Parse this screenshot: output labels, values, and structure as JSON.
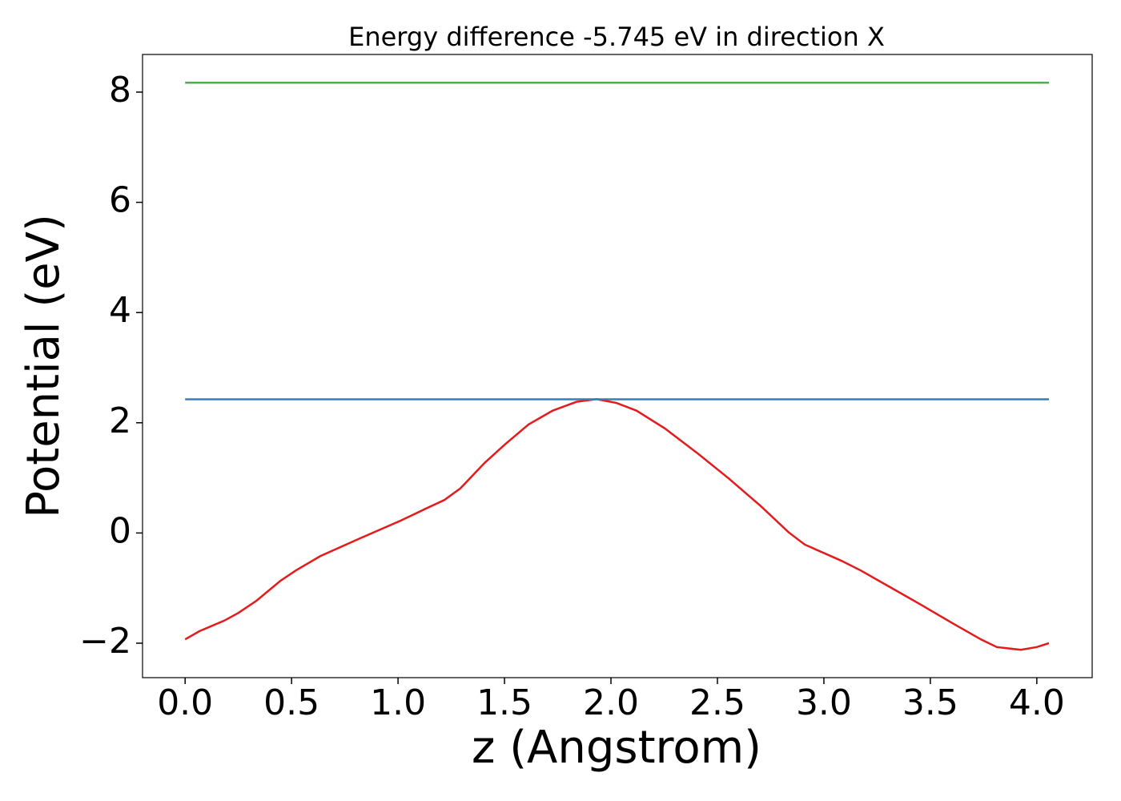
{
  "chart_data": {
    "type": "line",
    "title": "Energy difference -5.745 eV in direction X",
    "xlabel": "z (Angstrom)",
    "ylabel": "Potential (eV)",
    "xlim": [
      -0.2,
      4.26
    ],
    "ylim": [
      -2.625,
      8.683
    ],
    "xticks": [
      {
        "value": 0,
        "label": "0.0"
      },
      {
        "value": 0.5,
        "label": "0.5"
      },
      {
        "value": 1,
        "label": "1.0"
      },
      {
        "value": 1.5,
        "label": "1.5"
      },
      {
        "value": 2,
        "label": "2.0"
      },
      {
        "value": 2.5,
        "label": "2.5"
      },
      {
        "value": 3,
        "label": "3.0"
      },
      {
        "value": 3.5,
        "label": "3.5"
      },
      {
        "value": 4,
        "label": "4.0"
      }
    ],
    "yticks": [
      {
        "value": -2,
        "label": "−2"
      },
      0,
      2,
      4,
      6,
      8
    ],
    "grid": false,
    "series": [
      {
        "color": "#e41a1c",
        "x": [
          0,
          0.068,
          0.184,
          0.25,
          0.335,
          0.447,
          0.52,
          0.635,
          0.82,
          1.01,
          1.124,
          1.218,
          1.293,
          1.406,
          1.5,
          1.613,
          1.726,
          1.838,
          1.932,
          2.026,
          2.12,
          2.252,
          2.402,
          2.553,
          2.703,
          2.835,
          2.91,
          3.08,
          3.173,
          3.305,
          3.455,
          3.605,
          3.737,
          3.812,
          3.925,
          4.0,
          4.057
        ],
        "values": [
          -1.93,
          -1.78,
          -1.59,
          -1.45,
          -1.23,
          -0.87,
          -0.68,
          -0.42,
          -0.1,
          0.22,
          0.43,
          0.6,
          0.81,
          1.27,
          1.6,
          1.97,
          2.22,
          2.38,
          2.43,
          2.36,
          2.22,
          1.9,
          1.46,
          0.99,
          0.49,
          0.01,
          -0.21,
          -0.5,
          -0.68,
          -0.97,
          -1.3,
          -1.64,
          -1.93,
          -2.07,
          -2.12,
          -2.07,
          -2.0
        ]
      },
      {
        "color": "#377eb8",
        "x": [
          0,
          4.057
        ],
        "values": [
          2.425,
          2.425
        ]
      },
      {
        "color": "#4daf4a",
        "x": [
          0,
          4.057
        ],
        "values": [
          8.17,
          8.17
        ]
      }
    ]
  }
}
